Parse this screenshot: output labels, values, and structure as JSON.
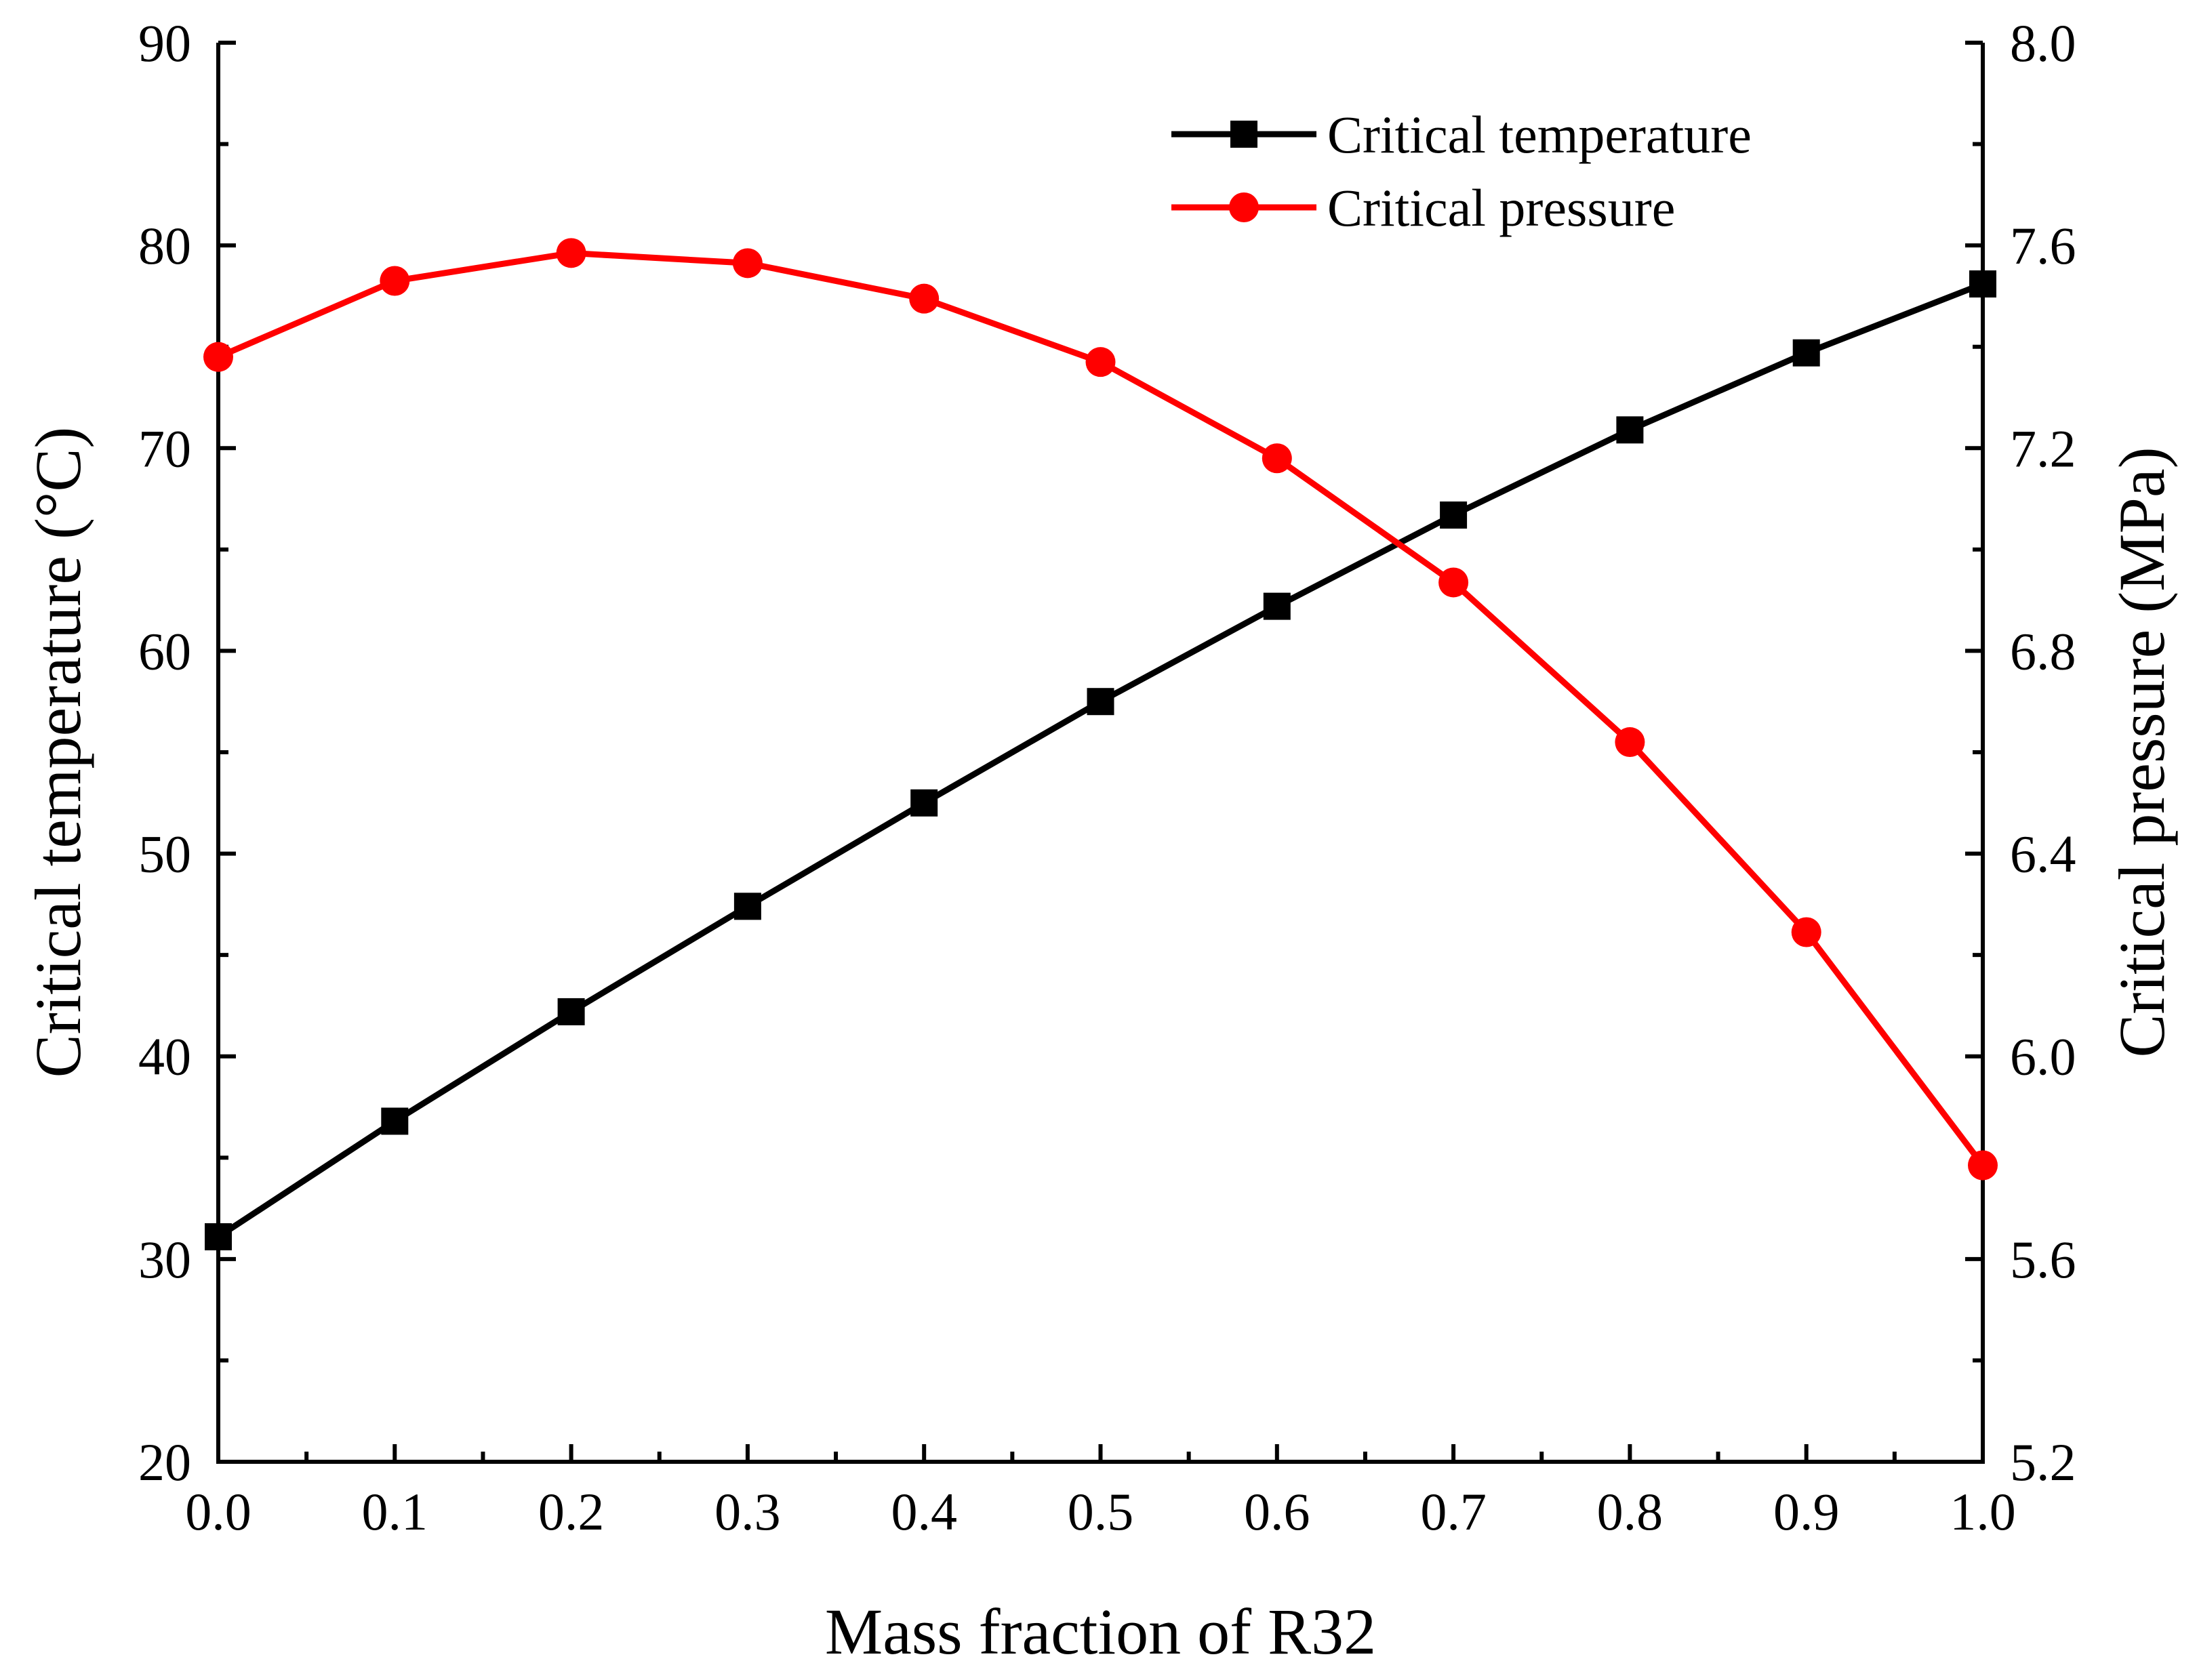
{
  "chart_data": {
    "type": "line",
    "title": "",
    "xlabel": "Mass fraction of R32",
    "ylabel_left": "Critical temperature (°C)",
    "ylabel_right": "Critical pressure (MPa)",
    "xlim": [
      0.0,
      1.0
    ],
    "ylim_left": [
      20,
      90
    ],
    "ylim_right": [
      5.2,
      8.0
    ],
    "x_ticks": [
      "0.0",
      "0.1",
      "0.2",
      "0.3",
      "0.4",
      "0.5",
      "0.6",
      "0.7",
      "0.8",
      "0.9",
      "1.0"
    ],
    "y_left_ticks": [
      "20",
      "30",
      "40",
      "50",
      "60",
      "70",
      "80",
      "90"
    ],
    "y_right_ticks": [
      "5.2",
      "5.6",
      "6.0",
      "6.4",
      "6.8",
      "7.2",
      "7.6",
      "8.0"
    ],
    "x": [
      0.0,
      0.1,
      0.2,
      0.3,
      0.4,
      0.5,
      0.6,
      0.7,
      0.8,
      0.9,
      1.0
    ],
    "grid": false,
    "legend_position": "top-right",
    "series": [
      {
        "name": "Critical temperature",
        "axis": "left",
        "color": "#000000",
        "marker": "square",
        "values": [
          31.1,
          36.8,
          42.2,
          47.4,
          52.5,
          57.5,
          62.2,
          66.7,
          70.9,
          74.7,
          78.1
        ]
      },
      {
        "name": "Critical pressure",
        "axis": "right",
        "color": "#ff0000",
        "marker": "circle",
        "values": [
          7.38,
          7.53,
          7.585,
          7.565,
          7.495,
          7.37,
          7.18,
          6.935,
          6.62,
          6.245,
          5.785
        ]
      }
    ]
  }
}
